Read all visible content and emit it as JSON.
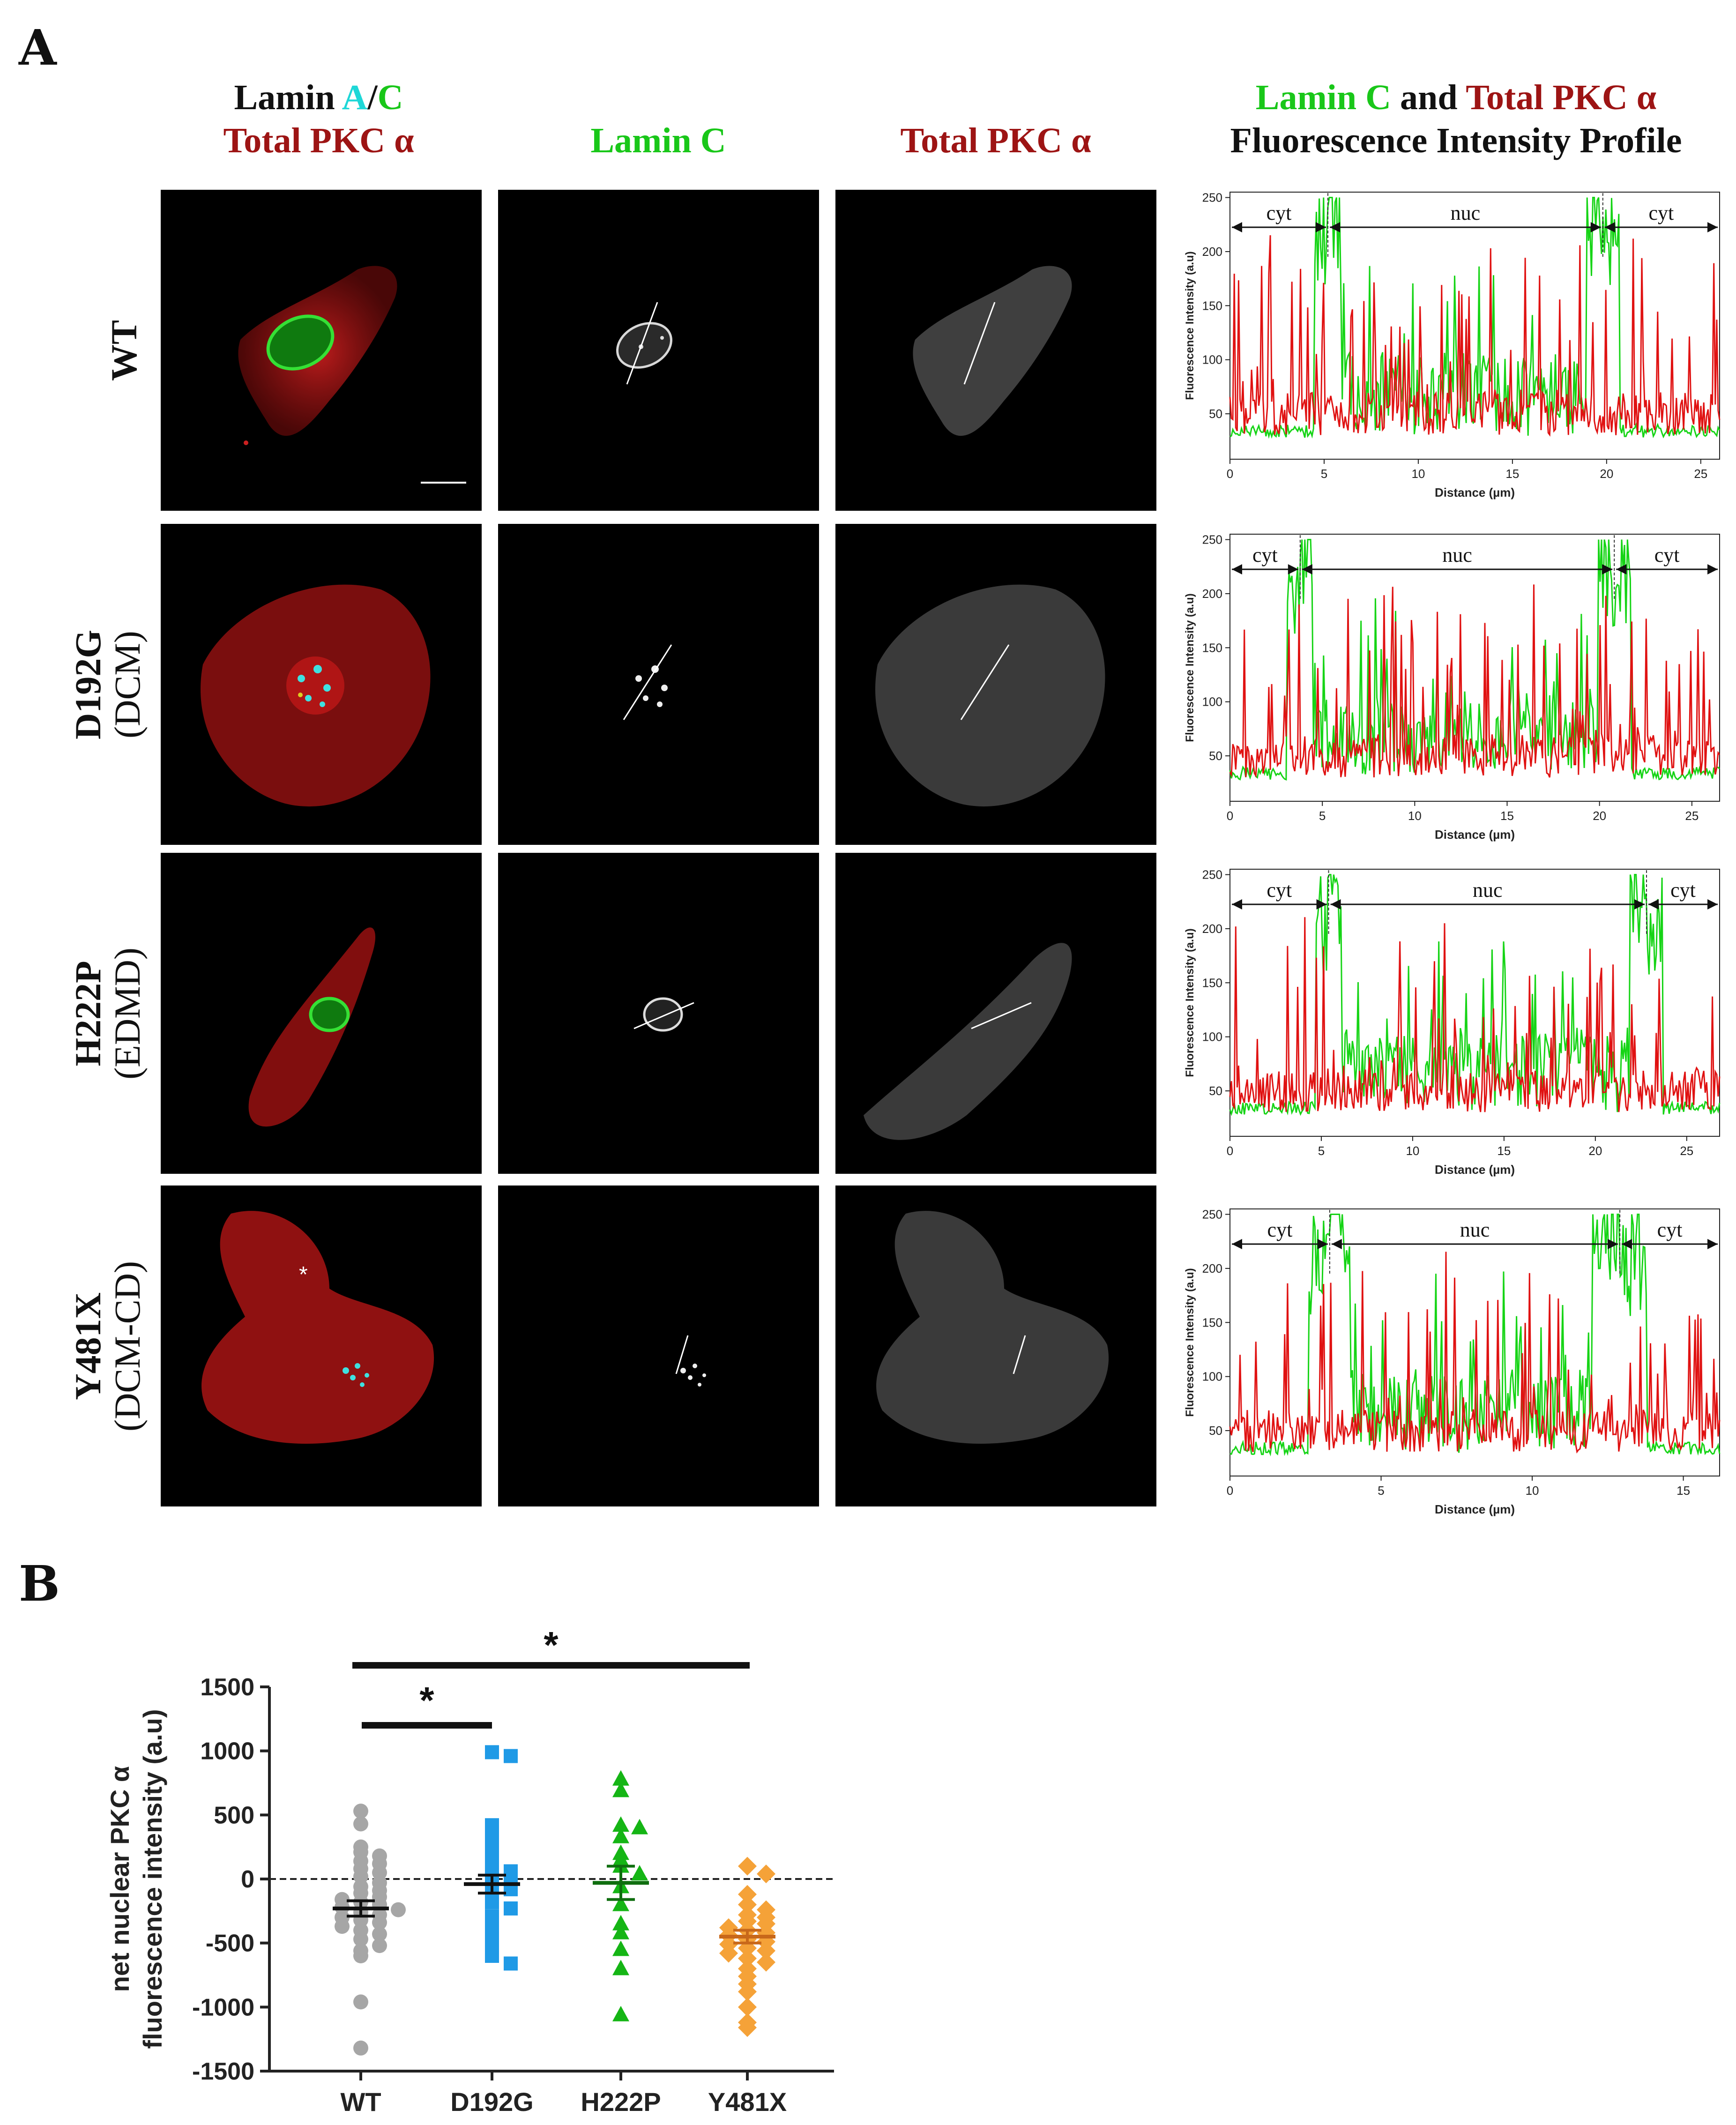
{
  "panel_a": {
    "letter": "A",
    "headers": {
      "merged_line1_word": "Lamin",
      "merged_line1_a": "A",
      "merged_line1_slash": "/",
      "merged_line1_c": "C",
      "merged_line2": "Total PKC α",
      "lamin_c": "Lamin C",
      "total_pkc": "Total PKC α",
      "profile_line1_green": "Lamin C",
      "profile_line1_and": "and",
      "profile_line1_red": "Total PKC α",
      "profile_line2": "Fluorescence Intensity Profile"
    },
    "rows": [
      {
        "label": "WT",
        "sublabel": ""
      },
      {
        "label": "D192G",
        "sublabel": "(DCM)"
      },
      {
        "label": "H222P",
        "sublabel": "(EDMD)"
      },
      {
        "label": "Y481X",
        "sublabel": "(DCM-CD)"
      }
    ],
    "asterisk_marker": "*",
    "profiles": [
      {
        "ylabel": "Fluorescence Intensity (a.u)",
        "xlabel": "Distance (µm)",
        "xmax": 26,
        "xticks": [
          "0",
          "5",
          "10",
          "15",
          "20",
          "25"
        ],
        "yticks": [
          "50",
          "100",
          "150",
          "200",
          "250"
        ],
        "region_labels": [
          "cyt",
          "nuc",
          "cyt"
        ],
        "boundaries": [
          5.2,
          19.8
        ]
      },
      {
        "ylabel": "Fluorescence Intensity (a.u)",
        "xlabel": "Distance (µm)",
        "xmax": 26.5,
        "xticks": [
          "0",
          "5",
          "10",
          "15",
          "20",
          "25"
        ],
        "yticks": [
          "50",
          "100",
          "150",
          "200",
          "250"
        ],
        "region_labels": [
          "cyt",
          "nuc",
          "cyt"
        ],
        "boundaries": [
          3.8,
          20.8
        ]
      },
      {
        "ylabel": "Fluorescence Intensity (a.u)",
        "xlabel": "Distance (µm)",
        "xmax": 26.8,
        "xticks": [
          "0",
          "5",
          "10",
          "15",
          "20",
          "25"
        ],
        "yticks": [
          "50",
          "100",
          "150",
          "200",
          "250"
        ],
        "region_labels": [
          "cyt",
          "nuc",
          "cyt"
        ],
        "boundaries": [
          5.4,
          22.8
        ]
      },
      {
        "ylabel": "Fluorescence Intensity (a.u)",
        "xlabel": "Distance (µm)",
        "xmax": 16.2,
        "xticks": [
          "0",
          "5",
          "10",
          "15"
        ],
        "yticks": [
          "50",
          "100",
          "150",
          "200",
          "250"
        ],
        "region_labels": [
          "cyt",
          "nuc",
          "cyt"
        ],
        "boundaries": [
          3.3,
          12.9
        ]
      }
    ]
  },
  "panel_b": {
    "letter": "B",
    "significance_marks": [
      "*",
      "*"
    ],
    "colors": {
      "WT": "#a6a6a6",
      "D192G": "#1f9ae6",
      "H222P": "#15b515",
      "Y481X": "#f5a238"
    },
    "chart_data": {
      "type": "scatter",
      "title": "",
      "xlabel": "",
      "ylabel_line1": "net nuclear PKC α",
      "ylabel_line2": "fluorescence intensity (a.u)",
      "ylim": [
        -1500,
        1500
      ],
      "yticks": [
        "1500",
        "1000",
        "500",
        "0",
        "-500",
        "-1000",
        "-1500"
      ],
      "categories": [
        "WT",
        "D192G",
        "H222P",
        "Y481X"
      ],
      "series": [
        {
          "name": "WT",
          "marker": "circle",
          "mean": -230,
          "sem": 60,
          "values": [
            530,
            430,
            250,
            210,
            180,
            140,
            120,
            80,
            50,
            20,
            -30,
            -60,
            -90,
            -110,
            -140,
            -160,
            -180,
            -200,
            -220,
            -240,
            -260,
            -280,
            -300,
            -320,
            -340,
            -370,
            -400,
            -430,
            -470,
            -520,
            -560,
            -600,
            -960,
            -1320
          ]
        },
        {
          "name": "D192G",
          "marker": "square",
          "mean": -40,
          "sem": 70,
          "values": [
            990,
            960,
            420,
            330,
            250,
            200,
            150,
            100,
            60,
            30,
            0,
            -40,
            -80,
            -130,
            -180,
            -230,
            -290,
            -350,
            -420,
            -500,
            -600,
            -660
          ]
        },
        {
          "name": "H222P",
          "marker": "triangle",
          "mean": -30,
          "sem": 130,
          "values": [
            780,
            690,
            420,
            400,
            330,
            200,
            150,
            100,
            40,
            -60,
            -200,
            -350,
            -420,
            -550,
            -700,
            -1060
          ]
        },
        {
          "name": "Y481X",
          "marker": "diamond",
          "mean": -450,
          "sem": 50,
          "values": [
            100,
            40,
            -120,
            -200,
            -240,
            -280,
            -300,
            -330,
            -350,
            -380,
            -400,
            -420,
            -440,
            -470,
            -490,
            -510,
            -540,
            -560,
            -580,
            -620,
            -650,
            -700,
            -760,
            -820,
            -880,
            -1000,
            -1120,
            -1160
          ]
        }
      ]
    }
  }
}
